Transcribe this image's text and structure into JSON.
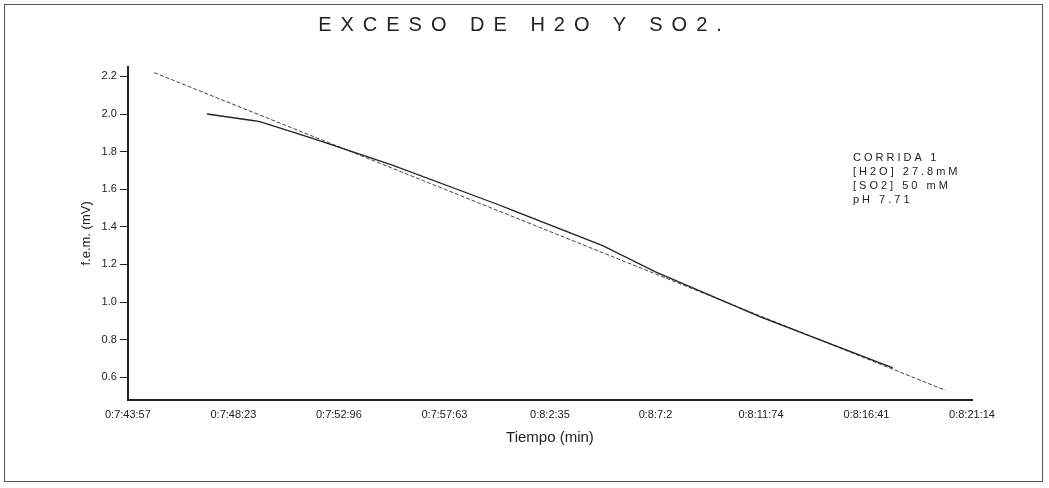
{
  "chart_data": {
    "type": "line",
    "title": "EXCESO DE H2O Y SO2.",
    "xlabel": "Tiempo (min)",
    "ylabel": "f.e.m. (mV)",
    "categories": [
      "0:7:43:57",
      null,
      null,
      null,
      "0:7:48:23",
      null,
      null,
      null,
      "0:7:52:96",
      null,
      null,
      null,
      "0:7:57:63",
      null,
      null,
      null,
      "0:8:2:35",
      null,
      null,
      null,
      "0:8:7:2",
      null,
      null,
      null,
      "0:8:11:74",
      null,
      null,
      null,
      "0:8:16:41",
      null,
      null,
      null,
      "0:8:21:14"
    ],
    "ylim": [
      0.48,
      2.25
    ],
    "yticks": [
      {
        "value": 0.6,
        "label": "0.6"
      },
      {
        "value": 0.8,
        "label": "0.8"
      },
      {
        "value": 1.0,
        "label": "1.0"
      },
      {
        "value": 1.2,
        "label": "1.2"
      },
      {
        "value": 1.4,
        "label": "1.4"
      },
      {
        "value": 1.6,
        "label": "1.6"
      },
      {
        "value": 1.8,
        "label": "1.8"
      },
      {
        "value": 2.0,
        "label": "2.0"
      },
      {
        "value": 2.2,
        "label": "2.2"
      }
    ],
    "series": [
      {
        "color": "#222222",
        "line_style": "solid",
        "values": [
          null,
          null,
          null,
          2.0,
          null,
          1.96,
          null,
          1.87,
          null,
          null,
          1.73,
          null,
          null,
          null,
          1.52,
          null,
          null,
          null,
          1.3,
          null,
          1.16,
          null,
          null,
          null,
          0.92,
          null,
          null,
          null,
          null,
          0.65,
          null,
          null,
          null
        ]
      },
      {
        "color": "#444444",
        "line_style": "dashed",
        "values": [
          null,
          2.22,
          null,
          null,
          null,
          null,
          null,
          null,
          null,
          null,
          null,
          null,
          null,
          null,
          null,
          null,
          null,
          null,
          null,
          null,
          null,
          null,
          null,
          null,
          null,
          null,
          null,
          null,
          null,
          null,
          null,
          0.53,
          null
        ]
      }
    ],
    "annotations": [
      "CORRIDA 1",
      "[H2O] 27.8mM",
      "[SO2] 50 mM",
      "pH 7.71"
    ],
    "legend": false,
    "grid": false,
    "marker": "none"
  }
}
